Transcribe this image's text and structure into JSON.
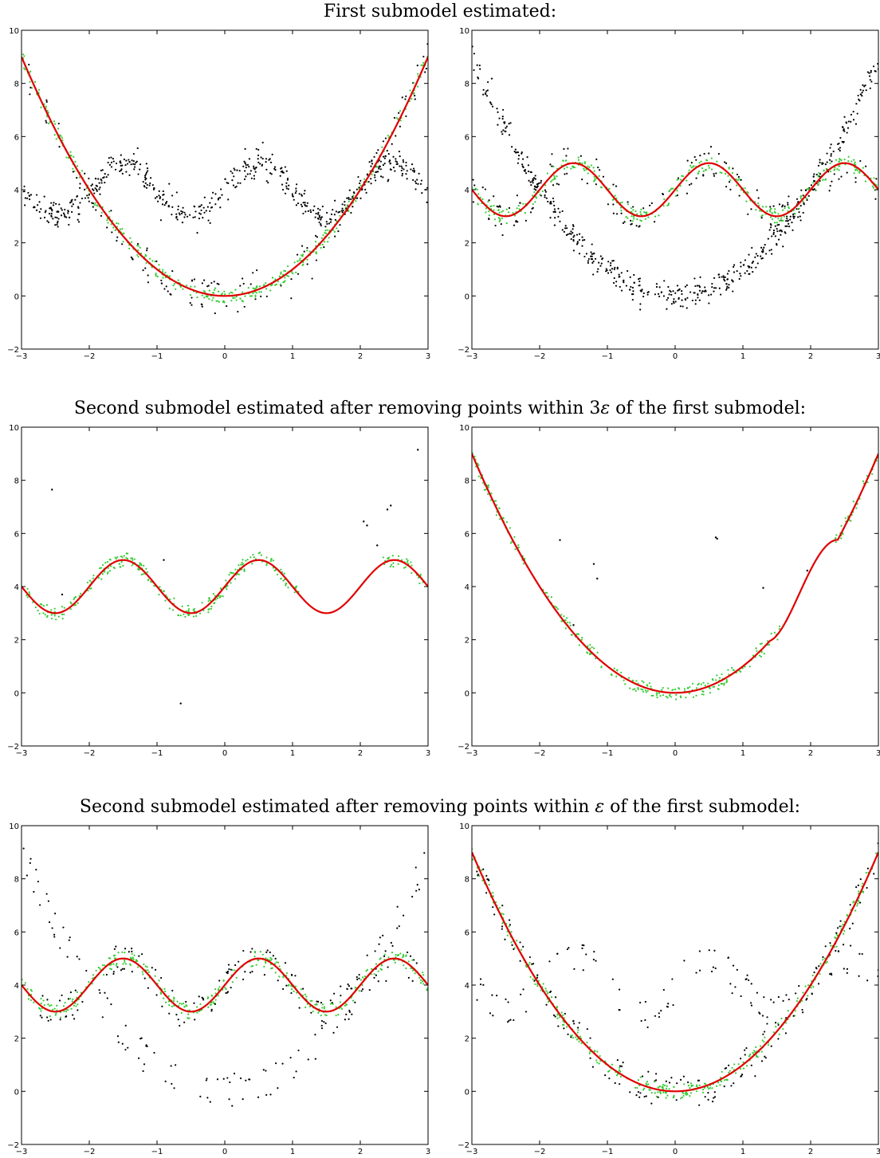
{
  "figure": {
    "row_titles": [
      {
        "prefix": "First submodel estimated:",
        "symbol": "",
        "suffix": ""
      },
      {
        "prefix": "Second submodel estimated after removing points within 3",
        "symbol": "ε",
        "suffix": " of the first submodel:"
      },
      {
        "prefix": "Second submodel estimated after removing points within ",
        "symbol": "ε",
        "suffix": " of the first submodel:"
      }
    ]
  },
  "colors": {
    "fit_line": "#e00000",
    "inliers": "#33cc33",
    "data_points": "#000000"
  },
  "chart_data": [
    {
      "type": "scatter",
      "id": "r1c1",
      "row": 0,
      "col": 0,
      "xlim": [
        -3,
        3
      ],
      "ylim": [
        -2,
        10
      ],
      "xticks": [
        "-3",
        "-2",
        "-1",
        "0",
        "1",
        "2",
        "3"
      ],
      "yticks": [
        "-2",
        "0",
        "2",
        "4",
        "6",
        "8",
        "10"
      ],
      "models_shown": [
        "parabola",
        "wave"
      ],
      "inlier_model": "parabola",
      "curve": "parabola",
      "curve_x_range": [
        -3,
        3
      ],
      "black_filter": {
        "type": "all"
      }
    },
    {
      "type": "scatter",
      "id": "r1c2",
      "row": 0,
      "col": 1,
      "xlim": [
        -3,
        3
      ],
      "ylim": [
        -2,
        10
      ],
      "xticks": [
        "-3",
        "-2",
        "-1",
        "0",
        "1",
        "2",
        "3"
      ],
      "yticks": [
        "-2",
        "0",
        "2",
        "4",
        "6",
        "8",
        "10"
      ],
      "models_shown": [
        "parabola",
        "wave"
      ],
      "inlier_model": "wave",
      "curve": "wave",
      "curve_x_range": [
        -3,
        3
      ],
      "black_filter": {
        "type": "all"
      }
    },
    {
      "type": "scatter",
      "id": "r2c1",
      "row": 1,
      "col": 0,
      "xlim": [
        -3,
        3
      ],
      "ylim": [
        -2,
        10
      ],
      "xticks": [
        "-3",
        "-2",
        "-1",
        "0",
        "1",
        "2",
        "3"
      ],
      "yticks": [
        "-2",
        "0",
        "2",
        "4",
        "6",
        "8",
        "10"
      ],
      "models_shown": [
        "wave"
      ],
      "inlier_model": "wave",
      "curve": "wave",
      "curve_x_range": [
        -3,
        3
      ],
      "inlier_gaps": [
        [
          1.1,
          2.3
        ]
      ],
      "black_filter": {
        "type": "none"
      },
      "outliers": [
        [
          -2.55,
          7.65
        ],
        [
          2.85,
          9.15
        ],
        [
          2.45,
          7.05
        ],
        [
          2.4,
          6.9
        ],
        [
          2.05,
          6.45
        ],
        [
          2.1,
          6.3
        ],
        [
          2.25,
          5.55
        ],
        [
          -0.65,
          -0.4
        ],
        [
          -0.9,
          5.0
        ],
        [
          -2.4,
          3.7
        ]
      ]
    },
    {
      "type": "scatter",
      "id": "r2c2",
      "row": 1,
      "col": 1,
      "xlim": [
        -3,
        3
      ],
      "ylim": [
        -2,
        10
      ],
      "xticks": [
        "-3",
        "-2",
        "-1",
        "0",
        "1",
        "2",
        "3"
      ],
      "yticks": [
        "-2",
        "0",
        "2",
        "4",
        "6",
        "8",
        "10"
      ],
      "models_shown": [
        "parabola"
      ],
      "inlier_model": "parabola",
      "curve": "parabola-shifted",
      "curve_x_range": [
        -3,
        3
      ],
      "inlier_gaps": [
        [
          -2.2,
          -1.95
        ],
        [
          1.55,
          2.35
        ]
      ],
      "black_filter": {
        "type": "none"
      },
      "outliers": [
        [
          -1.7,
          5.75
        ],
        [
          -1.2,
          4.85
        ],
        [
          -1.15,
          4.3
        ],
        [
          0.6,
          5.85
        ],
        [
          0.62,
          5.8
        ],
        [
          1.3,
          3.95
        ],
        [
          1.95,
          4.6
        ],
        [
          -1.5,
          2.55
        ]
      ]
    },
    {
      "type": "scatter",
      "id": "r3c1",
      "row": 2,
      "col": 0,
      "xlim": [
        -3,
        3
      ],
      "ylim": [
        -2,
        10
      ],
      "xticks": [
        "-3",
        "-2",
        "-1",
        "0",
        "1",
        "2",
        "3"
      ],
      "yticks": [
        "-2",
        "0",
        "2",
        "4",
        "6",
        "8",
        "10"
      ],
      "models_shown": [
        "parabola",
        "wave"
      ],
      "inlier_model": "wave",
      "curve": "wave",
      "curve_x_range": [
        -3,
        3
      ],
      "black_filter": {
        "type": "parabola-band",
        "width": 0.3
      }
    },
    {
      "type": "scatter",
      "id": "r3c2",
      "row": 2,
      "col": 1,
      "xlim": [
        -3,
        3
      ],
      "ylim": [
        -2,
        10
      ],
      "xticks": [
        "-3",
        "-2",
        "-1",
        "0",
        "1",
        "2",
        "3"
      ],
      "yticks": [
        "-2",
        "0",
        "2",
        "4",
        "6",
        "8",
        "10"
      ],
      "models_shown": [
        "parabola",
        "wave"
      ],
      "inlier_model": "parabola",
      "curve": "parabola",
      "curve_x_range": [
        -3,
        3
      ],
      "black_filter": {
        "type": "wave-band",
        "width": 0.3
      }
    }
  ]
}
